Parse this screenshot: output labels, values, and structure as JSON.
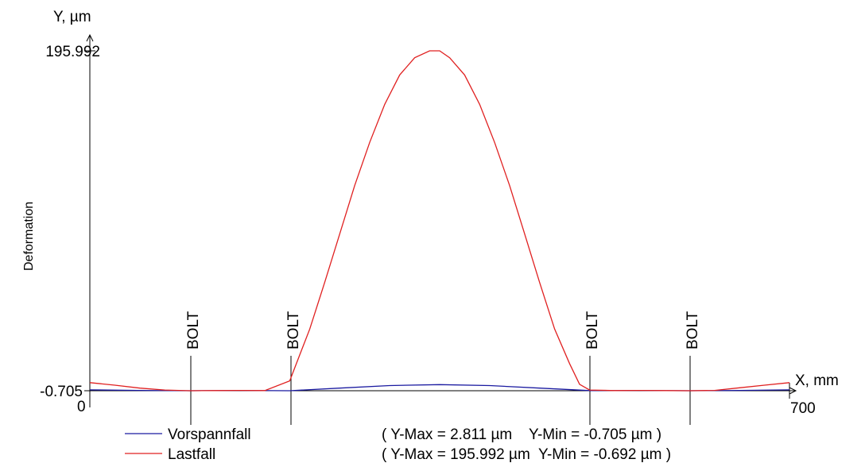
{
  "chart_data": {
    "type": "line",
    "ylabel_top": "Y, µm",
    "ylabel_side": "Deformation",
    "xlabel": "X, mm",
    "xlim": [
      0,
      700
    ],
    "ylim": [
      -0.705,
      195.992
    ],
    "y_ticks": [
      "195.992",
      "-0.705"
    ],
    "x_ticks": [
      "0",
      "700"
    ],
    "grid": false,
    "markers": [
      {
        "label": "BOLT",
        "x": 100
      },
      {
        "label": "BOLT",
        "x": 200
      },
      {
        "label": "BOLT",
        "x": 500
      },
      {
        "label": "BOLT",
        "x": 600
      }
    ],
    "series": [
      {
        "name": "Vorspannfall",
        "color": "#1a1aa0",
        "summary": "( Y-Max = 2.811 µm    Y-Min = -0.705 µm )",
        "x": [
          0,
          50,
          100,
          150,
          200,
          250,
          300,
          350,
          400,
          450,
          500,
          550,
          600,
          650,
          700
        ],
        "y": [
          -0.2,
          -0.5,
          -0.705,
          -0.5,
          -0.7,
          0.8,
          2.3,
          2.811,
          2.3,
          0.8,
          -0.6,
          -0.5,
          -0.705,
          -0.5,
          -0.2
        ]
      },
      {
        "name": "Lastfall",
        "color": "#e02020",
        "summary": "( Y-Max = 195.992 µm  Y-Min = -0.692 µm )",
        "x": [
          0,
          25,
          50,
          75,
          100,
          125,
          150,
          175,
          200,
          210,
          220,
          235,
          250,
          265,
          280,
          295,
          310,
          325,
          340,
          350,
          360,
          375,
          390,
          405,
          420,
          435,
          450,
          465,
          480,
          490,
          500,
          525,
          550,
          575,
          600,
          625,
          650,
          675,
          700
        ],
        "y": [
          4,
          2.5,
          0.8,
          -0.3,
          -0.692,
          -0.6,
          -0.5,
          -0.6,
          5,
          20,
          35,
          62,
          90,
          118,
          143,
          165,
          182,
          192,
          195.992,
          195.992,
          192,
          182,
          165,
          143,
          118,
          90,
          62,
          35,
          15,
          3,
          -0.3,
          -0.6,
          -0.5,
          -0.6,
          -0.692,
          -0.5,
          1,
          2.5,
          4
        ]
      }
    ]
  }
}
